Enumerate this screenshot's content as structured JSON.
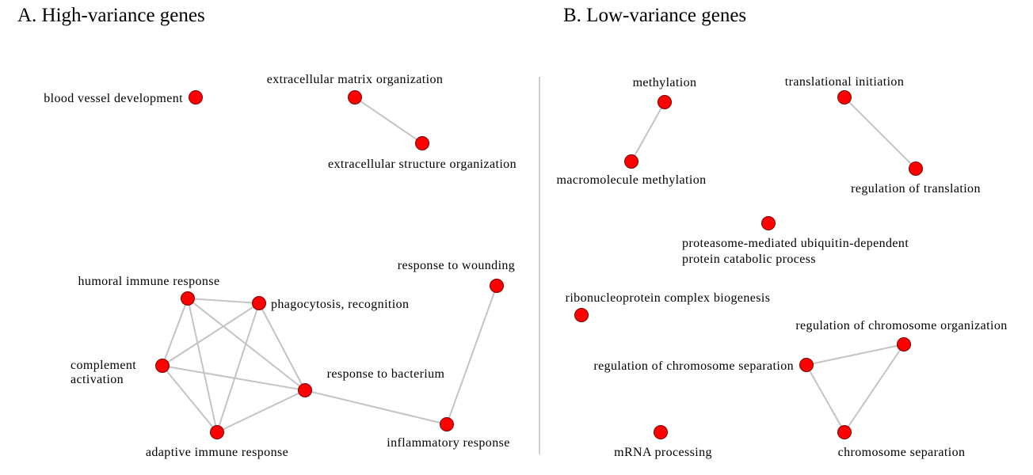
{
  "colors": {
    "node": "#ff0000",
    "edge": "#c4c4c4",
    "divider": "#d0d0d0",
    "text": "#000000"
  },
  "panels": {
    "a": {
      "title": "A. High-variance genes",
      "nodes": {
        "blood_vessel_development": "blood vessel development",
        "extracellular_matrix_organization": "extracellular matrix organization",
        "extracellular_structure_organization": "extracellular structure organization",
        "response_to_wounding": "response to wounding",
        "humoral_immune_response": "humoral immune response",
        "phagocytosis_recognition": "phagocytosis, recognition",
        "complement_activation": [
          "complement",
          "activation"
        ],
        "response_to_bacterium": "response to bacterium",
        "adaptive_immune_response": "adaptive immune response",
        "inflammatory_response": "inflammatory response"
      },
      "edges": [
        [
          "extracellular_matrix_organization",
          "extracellular_structure_organization"
        ],
        [
          "humoral_immune_response",
          "phagocytosis_recognition"
        ],
        [
          "humoral_immune_response",
          "complement_activation"
        ],
        [
          "humoral_immune_response",
          "response_to_bacterium"
        ],
        [
          "humoral_immune_response",
          "adaptive_immune_response"
        ],
        [
          "phagocytosis_recognition",
          "complement_activation"
        ],
        [
          "phagocytosis_recognition",
          "response_to_bacterium"
        ],
        [
          "phagocytosis_recognition",
          "adaptive_immune_response"
        ],
        [
          "complement_activation",
          "response_to_bacterium"
        ],
        [
          "complement_activation",
          "adaptive_immune_response"
        ],
        [
          "response_to_bacterium",
          "adaptive_immune_response"
        ],
        [
          "response_to_bacterium",
          "inflammatory_response"
        ],
        [
          "response_to_wounding",
          "inflammatory_response"
        ]
      ]
    },
    "b": {
      "title": "B. Low-variance genes",
      "nodes": {
        "methylation": "methylation",
        "macromolecule_methylation": "macromolecule methylation",
        "translational_initiation": "translational initiation",
        "regulation_of_translation": "regulation of translation",
        "proteasome_mediated": [
          "proteasome-mediated ubiquitin-dependent",
          "protein catabolic process"
        ],
        "ribonucleoprotein_complex_biogenesis": "ribonucleoprotein complex biogenesis",
        "regulation_of_chromosome_organization": "regulation of chromosome organization",
        "regulation_of_chromosome_separation": "regulation of chromosome separation",
        "chromosome_separation": "chromosome separation",
        "mrna_processing": "mRNA  processing"
      },
      "edges": [
        [
          "methylation",
          "macromolecule_methylation"
        ],
        [
          "translational_initiation",
          "regulation_of_translation"
        ],
        [
          "regulation_of_chromosome_separation",
          "regulation_of_chromosome_organization"
        ],
        [
          "regulation_of_chromosome_separation",
          "chromosome_separation"
        ],
        [
          "regulation_of_chromosome_organization",
          "chromosome_separation"
        ]
      ]
    }
  }
}
